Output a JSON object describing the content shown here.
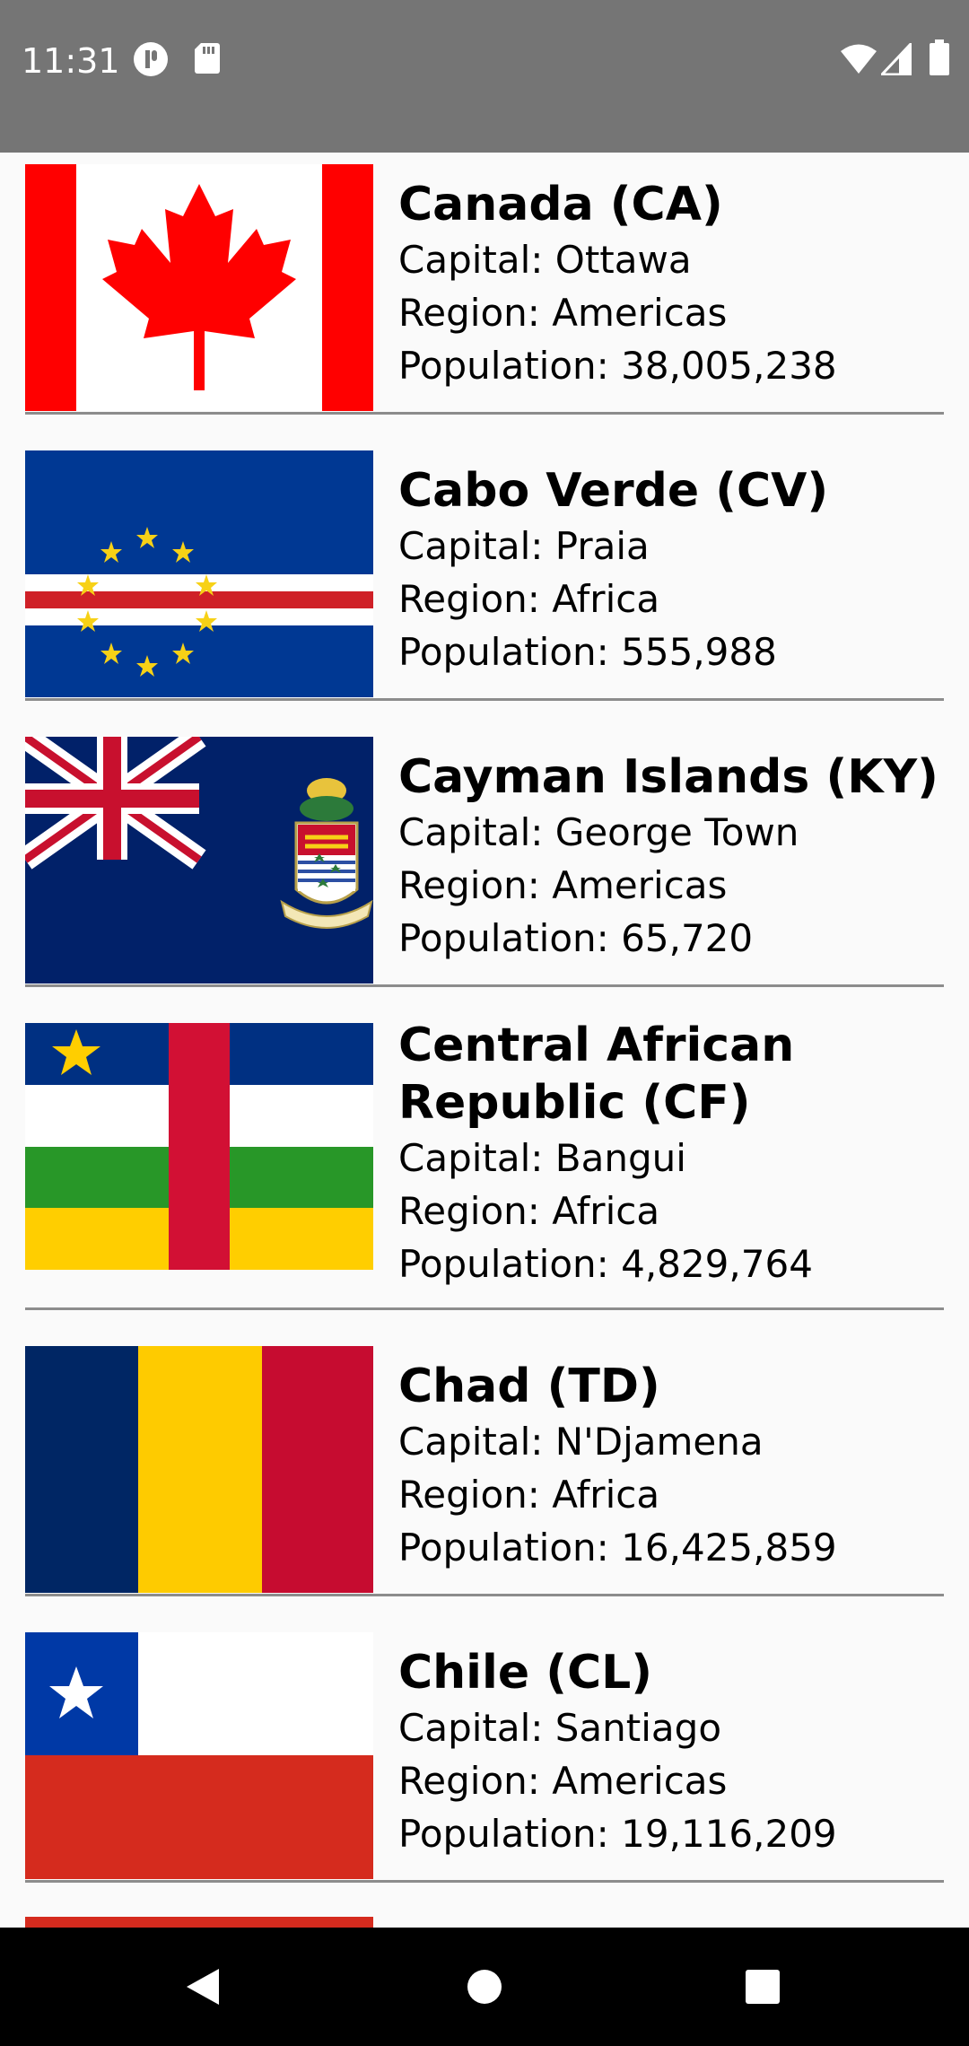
{
  "status_bar": {
    "time": "11:31",
    "icons": [
      "notification-circle-icon",
      "sd-card-icon",
      "wifi-icon",
      "cell-signal-icon",
      "battery-icon"
    ]
  },
  "countries": [
    {
      "name": "Canada (CA)",
      "capital": "Capital: Ottawa",
      "region": "Region: Americas",
      "population": "Population: 38,005,238",
      "flag": "canada-flag-icon"
    },
    {
      "name": "Cabo Verde (CV)",
      "capital": "Capital: Praia",
      "region": "Region: Africa",
      "population": "Population: 555,988",
      "flag": "cabo-verde-flag-icon"
    },
    {
      "name": "Cayman Islands (KY)",
      "capital": "Capital: George Town",
      "region": "Region: Americas",
      "population": "Population: 65,720",
      "flag": "cayman-islands-flag-icon"
    },
    {
      "name": "Central African Republic (CF)",
      "capital": "Capital: Bangui",
      "region": "Region: Africa",
      "population": "Population: 4,829,764",
      "flag": "central-african-republic-flag-icon"
    },
    {
      "name": "Chad (TD)",
      "capital": "Capital: N'Djamena",
      "region": "Region: Africa",
      "population": "Population: 16,425,859",
      "flag": "chad-flag-icon"
    },
    {
      "name": "Chile (CL)",
      "capital": "Capital: Santiago",
      "region": "Region: Americas",
      "population": "Population: 19,116,209",
      "flag": "chile-flag-icon"
    }
  ],
  "nav_bar": {
    "buttons": [
      "back-icon",
      "home-icon",
      "recents-icon"
    ]
  }
}
